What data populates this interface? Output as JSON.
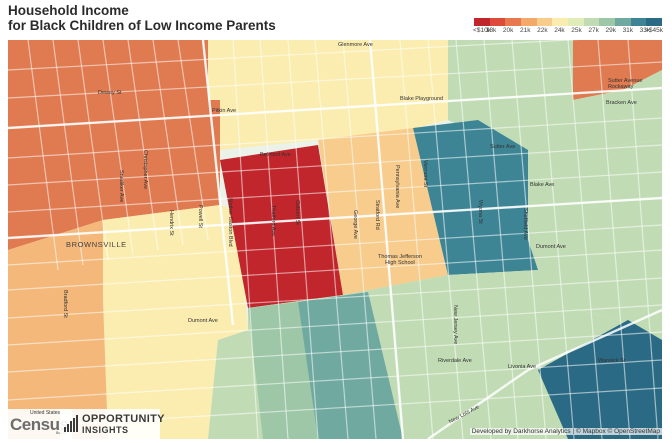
{
  "title": {
    "line1": "Household Income",
    "line2": "for Black Children of Low Income Parents"
  },
  "legend": {
    "colors": [
      "#c0262c",
      "#dd4c3a",
      "#e8784f",
      "#f3a96a",
      "#f7cc8c",
      "#fbedb0",
      "#e1edb8",
      "#c1dcb4",
      "#9ec7a8",
      "#6fa9a0",
      "#3d8595",
      "#2b6a84"
    ],
    "labels": [
      "<$10k",
      "18k",
      "20k",
      "21k",
      "22k",
      "24k",
      "25k",
      "27k",
      "29k",
      "31k",
      "33k",
      ">$45k"
    ]
  },
  "map_labels": {
    "brownsville": "BROWNSVILLE",
    "pitkin_ave": "Pitkin Ave",
    "sutter_ave": "Sutter Ave",
    "blake_ave": "Blake Ave",
    "dumont_ave": "Dumont Ave",
    "dumont_ave_right": "Dumont Ave",
    "belmont_ave": "Belmont Ave",
    "glenmore_ave": "Glenmore Ave",
    "pennsylvania_ave": "Pennsylvania Ave",
    "stratford_rd": "Stratford Rd",
    "george_ave": "George Ave",
    "new_jersey_ave": "New Jersey Ave",
    "new_lots_ave": "New Lots Ave",
    "vermont_st": "Vermont St",
    "wyona_st": "Wyona St",
    "sheffield_ave": "Sheffield Ave",
    "bradford_st": "Bradford St",
    "hendrix_st": "Hendrix St",
    "powell_st": "Powell St",
    "snediker_ave": "Snediker Ave",
    "christopher_ave": "Christopher Ave",
    "thatford_ave": "Thatford Ave",
    "osborn_st": "Osborn St",
    "mother_gaston_blvd": "Mother Gaston Blvd",
    "dewey_st": "Dewey St",
    "riverdale_ave": "Riverdale Ave",
    "warwick_st": "Warwick St",
    "livonia_ave": "Livonia Ave",
    "bracken_ave": "Bracken Ave",
    "blake_playground": "Blake Playground",
    "thomas_jefferson": "Thomas Jefferson\nHigh School",
    "sutter_avenue_station": "Sutter Avenue\nRockaway"
  },
  "logos": {
    "census_small": "United States",
    "census_big": "Census",
    "census_bureau": "Bureau",
    "oi_line1": "OPPORTUNITY",
    "oi_line2": "INSIGHTS"
  },
  "attribution": "Developed by Darkhorse Analytics | © Mapbox © OpenStreetMap"
}
